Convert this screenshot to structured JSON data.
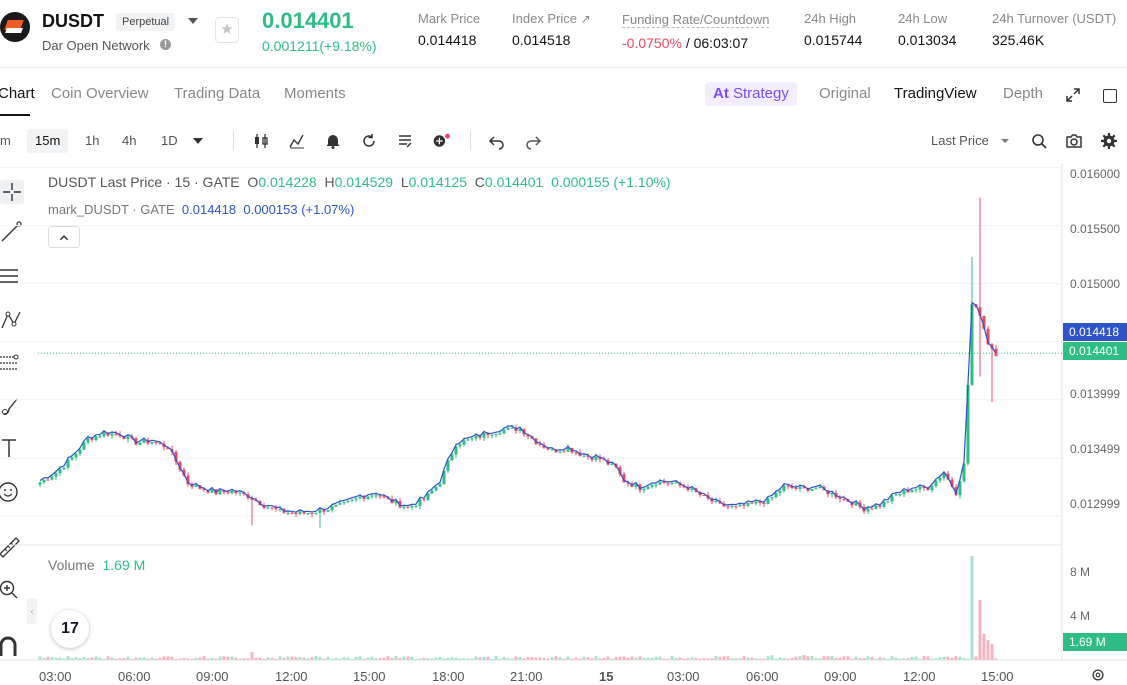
{
  "header": {
    "symbol": "DUSDT",
    "contract_type": "Perpetual",
    "project_name": "Dar Open Network",
    "last_price": "0.014401",
    "change": "0.001211(+9.18%)",
    "stats": [
      {
        "label": "Mark Price",
        "value": "0.014418"
      },
      {
        "label": "Index Price",
        "value": "0.014518",
        "ext": "↗"
      },
      {
        "label": "Funding Rate/Countdown",
        "rate": "-0.0750%",
        "countdown": "/ 06:03:07"
      },
      {
        "label": "24h High",
        "value": "0.015744"
      },
      {
        "label": "24h Low",
        "value": "0.013034"
      },
      {
        "label": "24h Turnover (USDT)",
        "value": "325.46K"
      }
    ],
    "colors": {
      "up": "#2ebd85",
      "down": "#f04864",
      "mark": "#2f54c7"
    }
  },
  "nav": {
    "tabs": [
      "Chart",
      "Coin Overview",
      "Trading Data",
      "Moments"
    ],
    "strategy_icon": "At",
    "strategy": "Strategy",
    "views": [
      "Original",
      "TradingView",
      "Depth"
    ]
  },
  "toolbar": {
    "intervals": [
      "m",
      "15m",
      "1h",
      "4h",
      "1D"
    ],
    "selected_interval": "15m",
    "price_type": "Last Price",
    "icons": [
      "candle-type-icon",
      "indicators-icon",
      "alert-icon",
      "replay-icon",
      "templates-icon",
      "add-compare-icon",
      "undo-icon",
      "redo-icon",
      "search-icon",
      "camera-icon",
      "settings-icon"
    ]
  },
  "left_tools": [
    "crosshair-icon",
    "trend-line-icon",
    "horizontal-lines-icon",
    "pattern-icon",
    "fib-icon",
    "brush-icon",
    "text-icon",
    "emoji-icon",
    "ruler-icon",
    "zoom-in-icon",
    "magnet-icon"
  ],
  "legend": {
    "title": "DUSDT Last Price · 15 · GATE",
    "o_key": "O",
    "o": "0.014228",
    "h_key": "H",
    "h": "0.014529",
    "l_key": "L",
    "l": "0.014125",
    "c_key": "C",
    "c": "0.014401",
    "change": "0.000155 (+1.10%)",
    "mark_label": "mark_DUSDT · GATE",
    "mark_value": "0.014418",
    "mark_change": "0.000153 (+1.07%)"
  },
  "volume": {
    "label": "Volume",
    "value": "1.69 M"
  },
  "tv_logo": "17",
  "chart_data": {
    "type": "candlestick",
    "interval": "15m",
    "ylim": [
      0.01275,
      0.01603
    ],
    "y_ticks": [
      "0.016000",
      "0.015500",
      "0.015000",
      "0.014418",
      "0.014401",
      "0.013999",
      "0.013499",
      "0.012999"
    ],
    "flags": {
      "mark": "0.014418",
      "last": "0.014401"
    },
    "volume_ticks": [
      "8 M",
      "4 M",
      "1.69 M"
    ],
    "x_ticks": [
      "03:00",
      "06:00",
      "09:00",
      "12:00",
      "15:00",
      "18:00",
      "21:00",
      "15",
      "03:00",
      "06:00",
      "09:00",
      "12:00",
      "15:00"
    ],
    "anchors": [
      [
        0,
        0.01329
      ],
      [
        4,
        0.01337
      ],
      [
        8,
        0.0135
      ],
      [
        12,
        0.01366
      ],
      [
        16,
        0.01371
      ],
      [
        20,
        0.0137
      ],
      [
        24,
        0.01363
      ],
      [
        28,
        0.01364
      ],
      [
        32,
        0.01359
      ],
      [
        35,
        0.01341
      ],
      [
        37,
        0.01328
      ],
      [
        40,
        0.01324
      ],
      [
        44,
        0.0132
      ],
      [
        48,
        0.01321
      ],
      [
        52,
        0.01317
      ],
      [
        56,
        0.01309
      ],
      [
        60,
        0.01304
      ],
      [
        64,
        0.01302
      ],
      [
        68,
        0.01303
      ],
      [
        72,
        0.01306
      ],
      [
        76,
        0.0131
      ],
      [
        80,
        0.01316
      ],
      [
        84,
        0.01319
      ],
      [
        88,
        0.01312
      ],
      [
        92,
        0.01307
      ],
      [
        96,
        0.01314
      ],
      [
        100,
        0.01329
      ],
      [
        102,
        0.01346
      ],
      [
        104,
        0.01362
      ],
      [
        108,
        0.01366
      ],
      [
        112,
        0.01371
      ],
      [
        116,
        0.01374
      ],
      [
        120,
        0.01375
      ],
      [
        124,
        0.01364
      ],
      [
        128,
        0.01356
      ],
      [
        132,
        0.01358
      ],
      [
        136,
        0.01352
      ],
      [
        140,
        0.01349
      ],
      [
        144,
        0.01341
      ],
      [
        146,
        0.0133
      ],
      [
        150,
        0.01324
      ],
      [
        154,
        0.01329
      ],
      [
        158,
        0.01328
      ],
      [
        162,
        0.01324
      ],
      [
        166,
        0.01316
      ],
      [
        170,
        0.01309
      ],
      [
        174,
        0.01307
      ],
      [
        178,
        0.0131
      ],
      [
        182,
        0.01313
      ],
      [
        186,
        0.01325
      ],
      [
        190,
        0.01323
      ],
      [
        194,
        0.01324
      ],
      [
        198,
        0.01319
      ],
      [
        202,
        0.01313
      ],
      [
        206,
        0.01306
      ],
      [
        210,
        0.01309
      ],
      [
        214,
        0.01318
      ],
      [
        218,
        0.01323
      ],
      [
        222,
        0.01324
      ],
      [
        226,
        0.01337
      ],
      [
        229,
        0.0132
      ],
      [
        231,
        0.01344
      ],
      [
        233,
        0.01482
      ],
      [
        235,
        0.01474
      ],
      [
        237,
        0.01449
      ],
      [
        239,
        0.0144
      ]
    ]
  }
}
